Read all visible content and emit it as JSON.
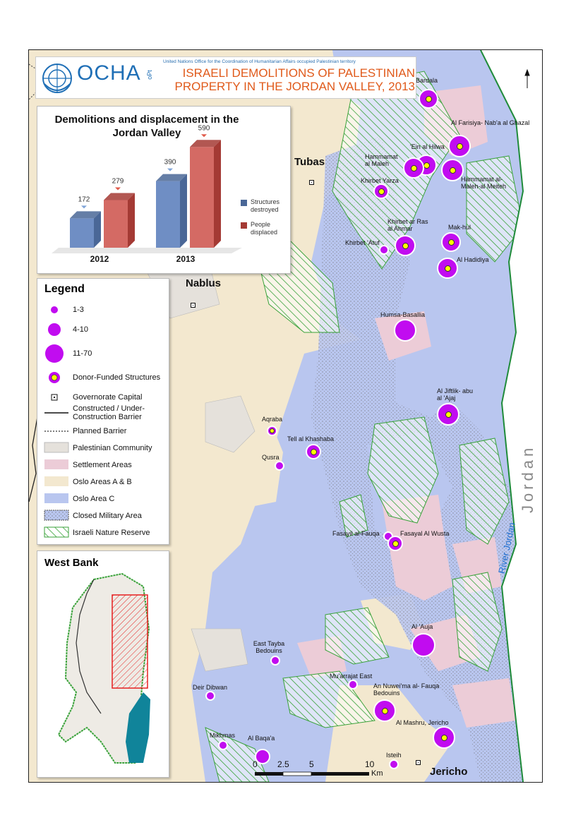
{
  "header": {
    "org": "OCHA",
    "org_suffix": "oPt",
    "org_full": "United Nations Office for the Coordination of Humanitarian Affairs occupied Palestinian territory",
    "title_line1": "ISRAELI DEMOLITIONS OF PALESTINIAN",
    "title_line2": "PROPERTY IN THE JORDAN VALLEY, 2013"
  },
  "chart_data": {
    "type": "bar",
    "title": "Demolitions and displacement in the Jordan Valley",
    "categories": [
      "2012",
      "2013"
    ],
    "series": [
      {
        "name": "Structures destroyed",
        "values": [
          172,
          390
        ],
        "color": "#4a6797"
      },
      {
        "name": "People displaced",
        "values": [
          279,
          590
        ],
        "color": "#a43a34"
      }
    ],
    "ylim": [
      0,
      620
    ]
  },
  "legend": {
    "title": "Legend",
    "items": [
      {
        "label": "1-3"
      },
      {
        "label": "4-10"
      },
      {
        "label": "11-70"
      },
      {
        "label": "Donor-Funded Structures"
      },
      {
        "label": "Governorate Capital"
      },
      {
        "label": "Constructed / Under-Construction Barrier"
      },
      {
        "label": "Planned Barrier"
      },
      {
        "label": "Palestinian Community"
      },
      {
        "label": "Settlement Areas"
      },
      {
        "label": "Oslo Areas A & B"
      },
      {
        "label": "Oslo Area C"
      },
      {
        "label": "Closed Military Area"
      },
      {
        "label": "Israeli Nature Reserve"
      }
    ]
  },
  "inset": {
    "title": "West Bank"
  },
  "cities": {
    "tubas": "Tubas",
    "nablus": "Nablus",
    "jericho": "Jericho"
  },
  "country_label": "Jordan",
  "river_label": "River Jordan",
  "scale": {
    "ticks": [
      "0",
      "2.5",
      "5",
      "10"
    ],
    "unit": "Km"
  },
  "communities": [
    {
      "name": "Bardala",
      "size": "large",
      "donor": true
    },
    {
      "name": "Al Farisiya- Nab'a al Ghazal",
      "size": "large",
      "donor": true
    },
    {
      "name": "'Ein al Hilwa",
      "size": "large",
      "donor": true
    },
    {
      "name": "Hammamat al Maleh",
      "size": "large",
      "donor": true
    },
    {
      "name": "Hammamat al- Maleh-al Meiteh",
      "size": "large",
      "donor": true
    },
    {
      "name": "Khirbet Yarza",
      "size": "medium",
      "donor": true
    },
    {
      "name": "Khirbet ar Ras al Ahmar",
      "size": "large",
      "donor": true
    },
    {
      "name": "Mak-hul",
      "size": "large",
      "donor": true
    },
    {
      "name": "Khirbet 'Atuf",
      "size": "small",
      "donor": false
    },
    {
      "name": "Al Hadidiya",
      "size": "large",
      "donor": true
    },
    {
      "name": "Humsa-Basallia",
      "size": "large",
      "donor": false
    },
    {
      "name": "Al Jiftlik- abu al 'Ajaj",
      "size": "large",
      "donor": true
    },
    {
      "name": "Aqraba",
      "size": "small",
      "donor": true
    },
    {
      "name": "Tell al Khashaba",
      "size": "medium",
      "donor": true
    },
    {
      "name": "Qusra",
      "size": "small",
      "donor": false
    },
    {
      "name": "Fasayil al-Fauqa",
      "size": "small",
      "donor": false
    },
    {
      "name": "Fasayal Al Wusta",
      "size": "medium",
      "donor": true
    },
    {
      "name": "Al 'Auja",
      "size": "large",
      "donor": false
    },
    {
      "name": "East Tayba Bedouins",
      "size": "small",
      "donor": false
    },
    {
      "name": "Mu'arrajat East",
      "size": "small",
      "donor": false
    },
    {
      "name": "Deir Dibwan",
      "size": "small",
      "donor": false
    },
    {
      "name": "An Nuwei'ma al- Fauqa Bedouins",
      "size": "large",
      "donor": true
    },
    {
      "name": "Al Mashru, Jericho",
      "size": "large",
      "donor": true
    },
    {
      "name": "Mikhmas",
      "size": "small",
      "donor": false
    },
    {
      "name": "Al Baqa'a",
      "size": "medium",
      "donor": false
    },
    {
      "name": "Isteih",
      "size": "small",
      "donor": false
    }
  ]
}
